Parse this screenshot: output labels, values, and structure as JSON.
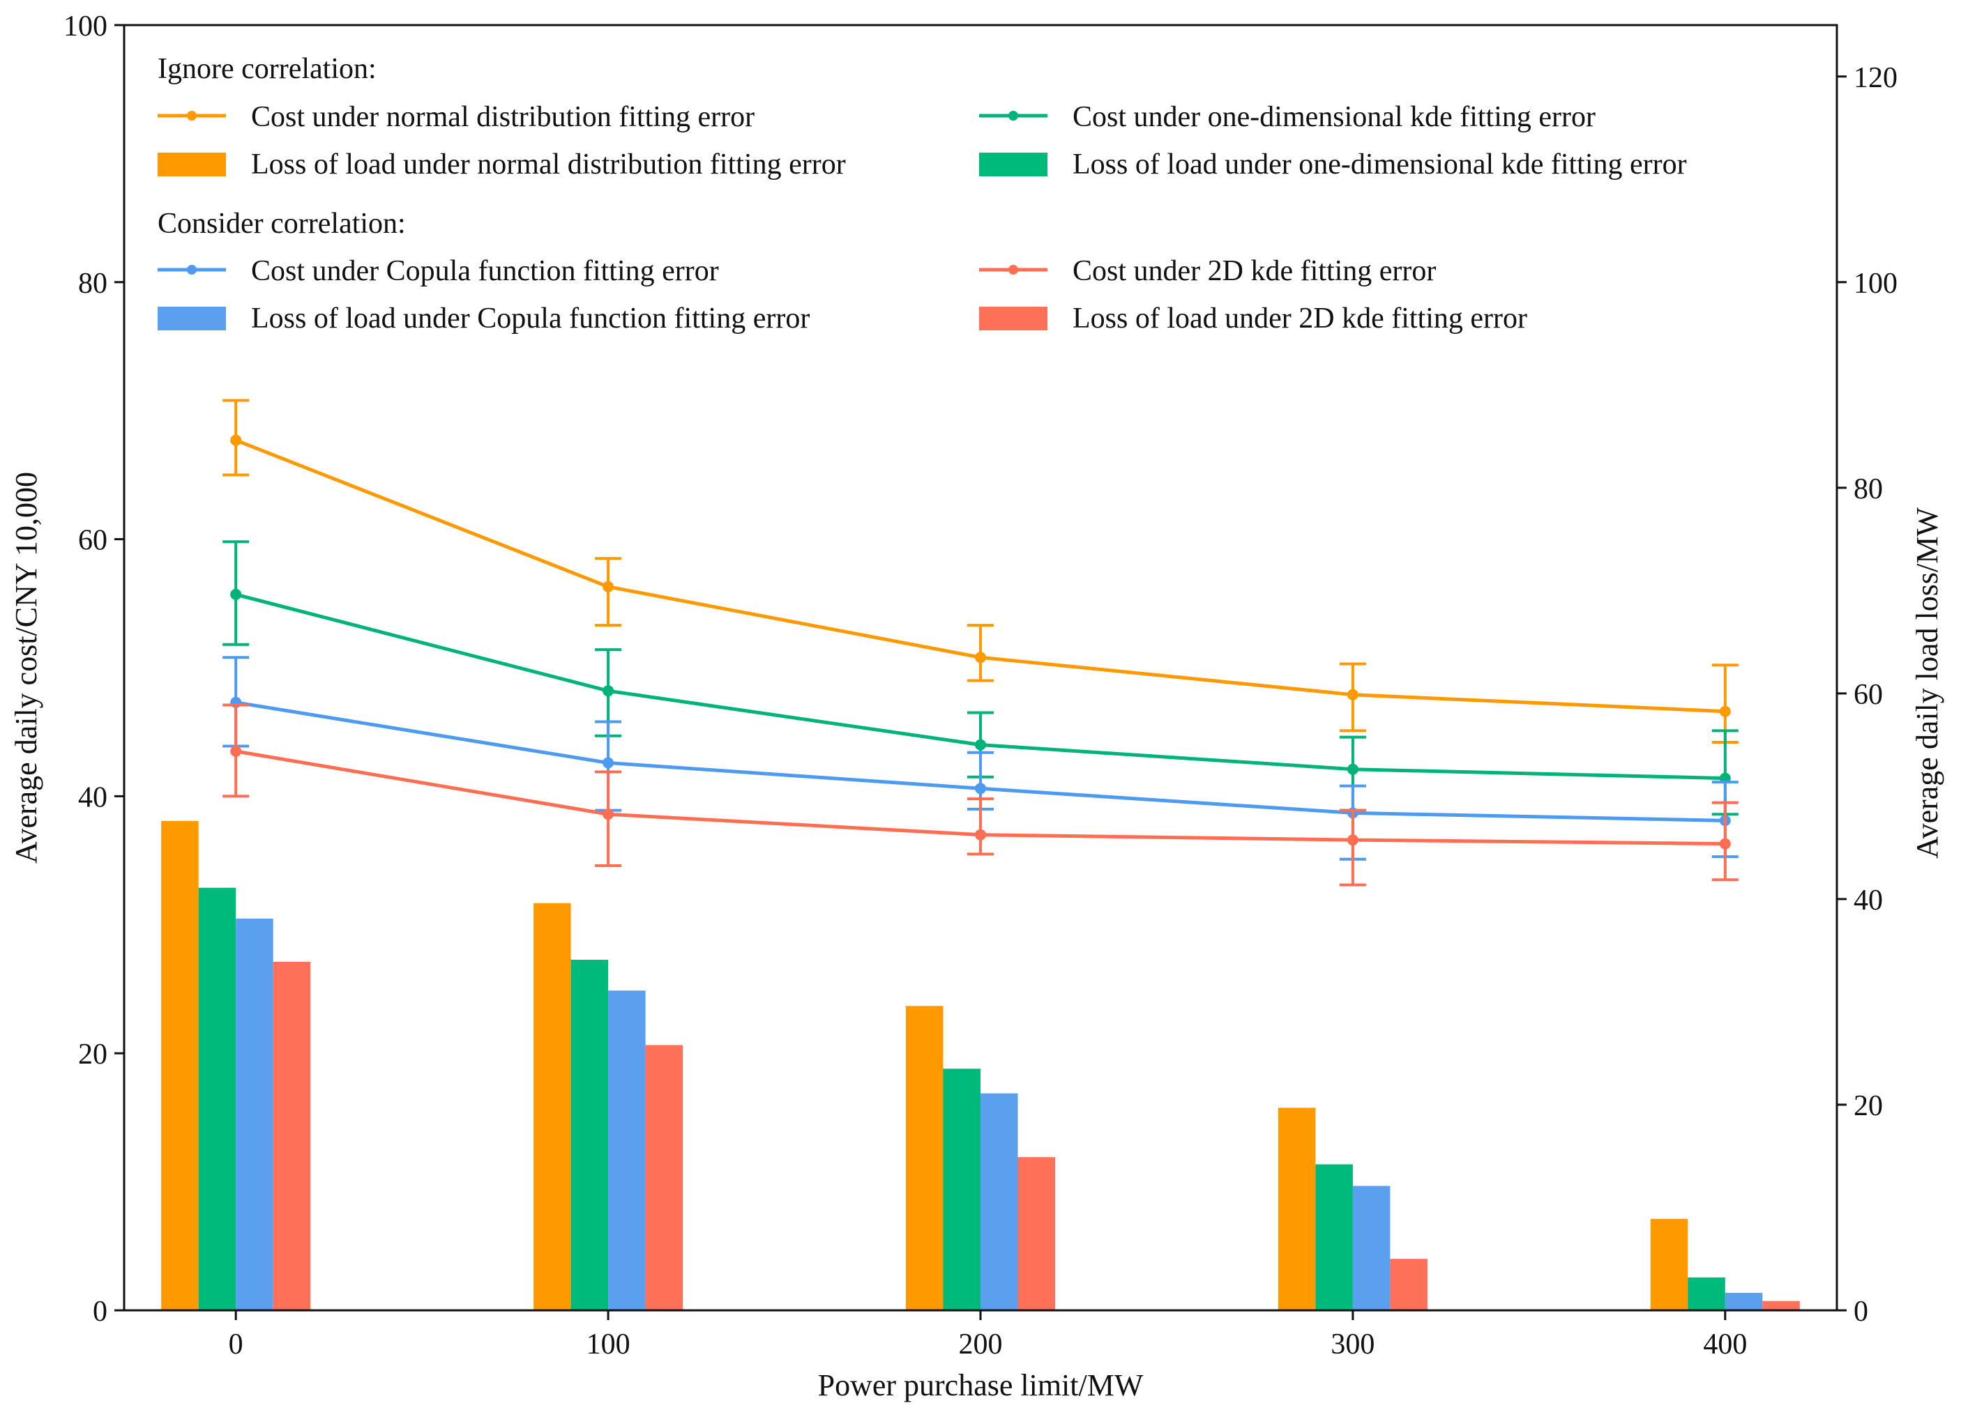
{
  "chart_data": {
    "type": "bar",
    "title": "",
    "xlabel": "Power purchase limit/MW",
    "ylabel": "Average daily cost/CNY 10,000",
    "y2label": "Average daily load loss/MW",
    "x": [
      0,
      100,
      200,
      300,
      400
    ],
    "xlim": [
      -30,
      430
    ],
    "ylim": [
      0,
      100
    ],
    "y2lim": [
      0,
      125
    ],
    "xticks": [
      0,
      100,
      200,
      300,
      400
    ],
    "yticks": [
      0,
      20,
      40,
      60,
      80,
      100
    ],
    "y2ticks": [
      0,
      20,
      40,
      60,
      80,
      100,
      120
    ],
    "legend": {
      "placement": "top-left",
      "group1_title": "Ignore correlation:",
      "group2_title": "Consider correlation:"
    },
    "line_series": [
      {
        "name": "Cost under normal distribution fitting error",
        "color": "#FF9900",
        "values": [
          67.7,
          56.3,
          50.8,
          47.9,
          46.6
        ],
        "err_low": [
          65.0,
          53.3,
          49.0,
          45.1,
          44.2
        ],
        "err_high": [
          70.8,
          58.5,
          53.3,
          50.3,
          50.2
        ]
      },
      {
        "name": "Cost under one-dimensional kde fitting error",
        "color": "#00B37A",
        "values": [
          55.7,
          48.2,
          44.0,
          42.1,
          41.4
        ],
        "err_low": [
          51.8,
          44.7,
          41.5,
          38.9,
          38.6
        ],
        "err_high": [
          59.8,
          51.4,
          46.5,
          44.6,
          45.1
        ]
      },
      {
        "name": "Cost under Copula function fitting error",
        "color": "#4D9BF0",
        "values": [
          47.3,
          42.6,
          40.6,
          38.7,
          38.1
        ],
        "err_low": [
          43.9,
          38.9,
          39.0,
          35.1,
          35.3
        ],
        "err_high": [
          50.8,
          45.8,
          43.4,
          40.8,
          41.1
        ]
      },
      {
        "name": "Cost under 2D kde fitting error",
        "color": "#FF6E52",
        "values": [
          43.5,
          38.6,
          37.0,
          36.6,
          36.3
        ],
        "err_low": [
          40.0,
          34.6,
          35.5,
          33.1,
          33.5
        ],
        "err_high": [
          47.1,
          41.9,
          39.8,
          38.9,
          39.5
        ]
      }
    ],
    "bar_series": [
      {
        "name": "Loss of load under normal distribution fitting error",
        "color": "#FF9900",
        "values": [
          47.6,
          39.6,
          29.6,
          19.7,
          8.9
        ]
      },
      {
        "name": "Loss of load under one-dimensional kde fitting error",
        "color": "#00BA7C",
        "values": [
          41.1,
          34.1,
          23.5,
          14.2,
          3.2
        ]
      },
      {
        "name": "Loss of load under Copula function fitting error",
        "color": "#5AA0EF",
        "values": [
          38.1,
          31.1,
          21.1,
          12.1,
          1.7
        ]
      },
      {
        "name": "Loss of load under 2D kde fitting error",
        "color": "#FF7058",
        "values": [
          33.9,
          25.8,
          14.9,
          5.0,
          0.9
        ]
      }
    ]
  }
}
